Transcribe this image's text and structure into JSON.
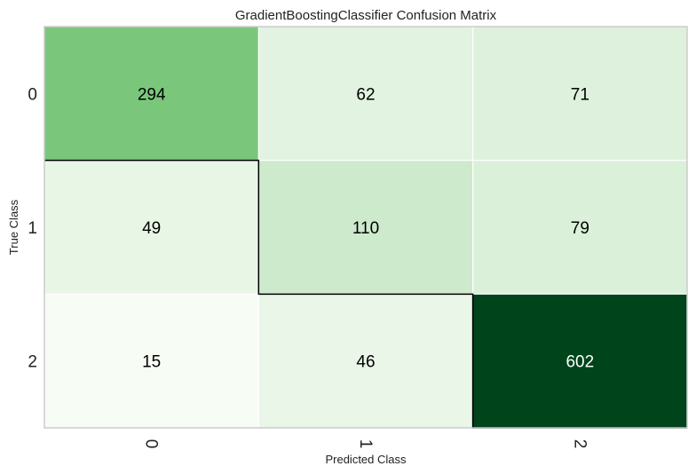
{
  "chart_data": {
    "type": "heatmap",
    "title": "GradientBoostingClassifier Confusion Matrix",
    "xlabel": "Predicted Class",
    "ylabel": "True Class",
    "x_categories": [
      "0",
      "1",
      "2"
    ],
    "y_categories": [
      "0",
      "1",
      "2"
    ],
    "values": [
      [
        294,
        62,
        71
      ],
      [
        49,
        110,
        79
      ],
      [
        15,
        46,
        602
      ]
    ],
    "colormap": {
      "low": "#f7fcf5",
      "mid": "#74c476",
      "high": "#00441b"
    },
    "grid": true,
    "diagonal_outline": true
  }
}
